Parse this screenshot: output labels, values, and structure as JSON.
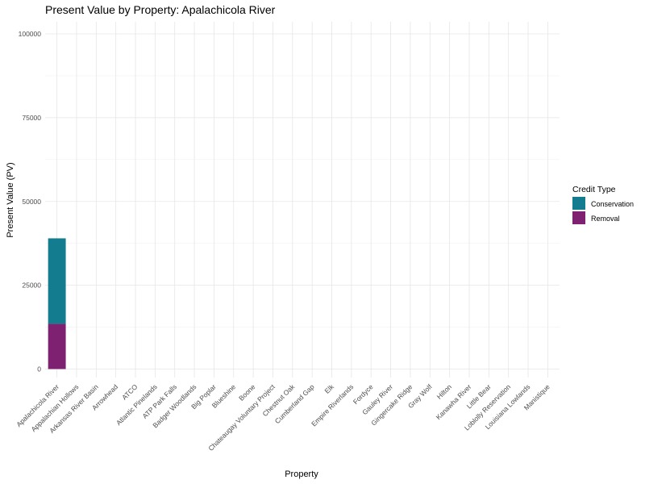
{
  "chart_data": {
    "type": "bar",
    "stacked": true,
    "title": "Present Value by Property: Apalachicola River",
    "xlabel": "Property",
    "ylabel": "Present Value (PV)",
    "ylim": [
      0,
      103000
    ],
    "yticks": [
      0,
      25000,
      50000,
      75000,
      100000
    ],
    "grid": true,
    "legend_position": "right",
    "legend_title": "Credit Type",
    "categories": [
      "Apalachicola River",
      "Appalachian Hollows",
      "Arkansas River Basin",
      "Arrowhead",
      "ATCO",
      "Atlantic Pinelands",
      "ATP Park Falls",
      "Badger Woodlands",
      "Big Poplar",
      "Blueshine",
      "Boone",
      "Chateaugay Voluntary Project",
      "Chestnut Oak",
      "Cumberland Gap",
      "Elk",
      "Empire Riverlands",
      "Fordyce",
      "Gauley River",
      "Gingercake Ridge",
      "Gray Wolf",
      "Hilton",
      "Kanawha River",
      "Little Bear",
      "Loblolly Reservation",
      "Louisiana Lowlands",
      "Manistique"
    ],
    "series": [
      {
        "name": "Conservation",
        "color": "#137c8f",
        "values": [
          25500,
          0,
          0,
          0,
          0,
          0,
          0,
          0,
          0,
          0,
          0,
          0,
          0,
          0,
          0,
          0,
          0,
          0,
          0,
          0,
          0,
          0,
          0,
          0,
          0,
          0
        ]
      },
      {
        "name": "Removal",
        "color": "#7e2170",
        "values": [
          13500,
          0,
          0,
          0,
          0,
          0,
          0,
          0,
          0,
          0,
          0,
          0,
          0,
          0,
          0,
          0,
          0,
          0,
          0,
          0,
          0,
          0,
          0,
          0,
          0,
          0
        ]
      }
    ]
  }
}
